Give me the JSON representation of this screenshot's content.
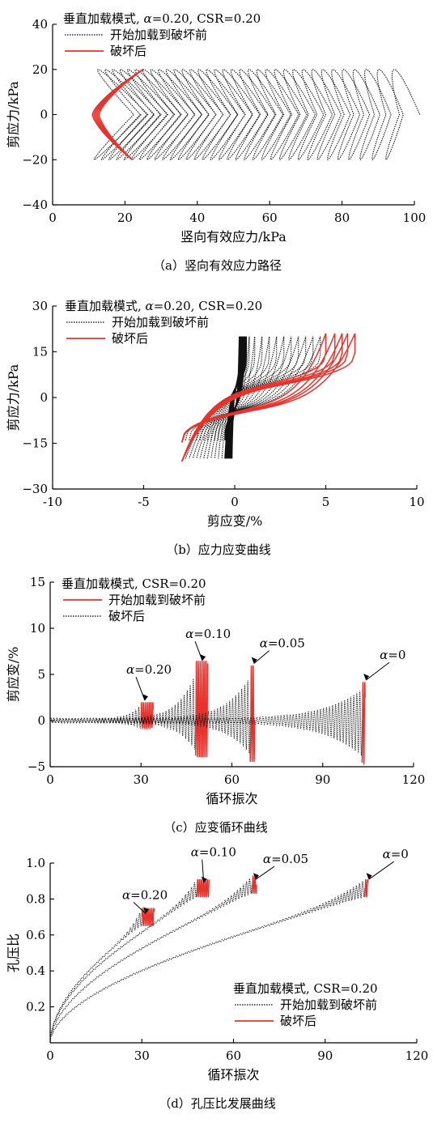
{
  "colors": {
    "before_failure_line": "#111111",
    "after_failure_line": "#e8322c",
    "axis": "#000000",
    "background": "#ffffff"
  },
  "chart_data": [
    {
      "id": "a",
      "type": "line",
      "caption": "（a）竖向有效应力路径",
      "xlabel": "竖向有效应力/kPa",
      "ylabel": "剪应力/kPa",
      "xlim": [
        0,
        100
      ],
      "ylim": [
        -40,
        40
      ],
      "xticks": [
        0,
        20,
        40,
        60,
        80,
        100
      ],
      "yticks": [
        -40,
        -20,
        0,
        20,
        40
      ],
      "grid": false,
      "legend": {
        "placement": "top-left",
        "title": "垂直加载模式, α=0.20, CSR=0.20",
        "entries": [
          {
            "label": "开始加载到破坏前",
            "style": "dotted",
            "color": "#111111"
          },
          {
            "label": "破坏后",
            "style": "solid",
            "color": "#e8322c"
          }
        ]
      },
      "series": [
        {
          "name": "开始加载到破坏前",
          "style": "dotted",
          "color": "#111111",
          "envelope": {
            "sigma_start": 100,
            "sigma_end": 23,
            "cycles": 34,
            "amplitude": 20
          }
        },
        {
          "name": "破坏后",
          "style": "solid",
          "color": "#e8322c",
          "butterfly": {
            "sigma_min": 11,
            "sigma_max_pos": 25,
            "sigma_max_neg": 22,
            "amplitude": 20,
            "cycles": 5
          }
        }
      ]
    },
    {
      "id": "b",
      "type": "line",
      "caption": "（b）应力应变曲线",
      "xlabel": "剪应变/%",
      "ylabel": "剪应力/kPa",
      "xlim": [
        -10,
        10
      ],
      "ylim": [
        -30,
        30
      ],
      "xticks": [
        -10,
        -5,
        0,
        5,
        10
      ],
      "yticks": [
        -30,
        -15,
        0,
        15,
        30
      ],
      "grid": false,
      "legend": {
        "placement": "top-left",
        "title": "垂直加载模式, α=0.20, CSR=0.20",
        "entries": [
          {
            "label": "开始加载到破坏前",
            "style": "dotted",
            "color": "#111111"
          },
          {
            "label": "破坏后",
            "style": "solid",
            "color": "#e8322c"
          }
        ]
      },
      "series": [
        {
          "name": "开始加载到破坏前",
          "style": "dotted",
          "color": "#111111",
          "loops": [
            [
              -0.5,
              0.5
            ],
            [
              -0.7,
              0.8
            ],
            [
              -0.9,
              1.1
            ],
            [
              -1.1,
              1.5
            ],
            [
              -1.3,
              1.9
            ],
            [
              -1.5,
              2.3
            ],
            [
              -1.7,
              2.7
            ],
            [
              -1.9,
              3.1
            ],
            [
              -2.1,
              3.5
            ],
            [
              -2.3,
              3.9
            ],
            [
              -2.5,
              4.3
            ],
            [
              -2.7,
              4.7
            ]
          ],
          "amplitude": 20
        },
        {
          "name": "破坏后",
          "style": "solid",
          "color": "#e8322c",
          "loops": [
            [
              -2.9,
              5.0
            ],
            [
              -2.9,
              5.5
            ],
            [
              -2.9,
              5.9
            ],
            [
              -2.9,
              6.2
            ],
            [
              -2.9,
              6.6
            ]
          ],
          "amplitude": 21
        }
      ]
    },
    {
      "id": "c",
      "type": "line",
      "caption": "（c）应变循环曲线",
      "xlabel": "循环振次",
      "ylabel": "剪应变/%",
      "xlim": [
        0,
        120
      ],
      "ylim": [
        -5,
        15
      ],
      "xticks": [
        0,
        30,
        60,
        90,
        120
      ],
      "yticks": [
        -5,
        0,
        5,
        10,
        15
      ],
      "grid": false,
      "legend": {
        "placement": "top-left",
        "title": "垂直加载模式, CSR=0.20",
        "entries": [
          {
            "label": "开始加载到破坏前",
            "style": "solid",
            "color": "#e8322c"
          },
          {
            "label": "破坏后",
            "style": "dotted",
            "color": "#111111"
          }
        ]
      },
      "series": [
        {
          "name": "α=0.20",
          "n_fail": 30,
          "n_end": 34,
          "peak_max": 2.0,
          "peak_min": -0.8
        },
        {
          "name": "α=0.10",
          "n_fail": 48,
          "n_end": 52,
          "peak_max": 6.5,
          "peak_min": -4.0
        },
        {
          "name": "α=0.05",
          "n_fail": 66,
          "n_end": 67.5,
          "peak_max": 6.0,
          "peak_min": -4.5
        },
        {
          "name": "α=0",
          "n_fail": 103,
          "n_end": 104,
          "peak_max": 4.2,
          "peak_min": -4.8
        }
      ],
      "annotations": [
        {
          "text": "α=0.20",
          "x": 31,
          "y": 2.0
        },
        {
          "text": "α=0.10",
          "x": 50,
          "y": 6.3
        },
        {
          "text": "α=0.05",
          "x": 67,
          "y": 6.0
        },
        {
          "text": "α=0",
          "x": 104,
          "y": 4.2
        }
      ]
    },
    {
      "id": "d",
      "type": "line",
      "caption": "（d）孔压比发展曲线",
      "xlabel": "循环振次",
      "ylabel": "孔压比",
      "xlim": [
        0,
        120
      ],
      "ylim": [
        0,
        1.0
      ],
      "xticks": [
        0,
        30,
        60,
        90,
        120
      ],
      "yticks": [
        0.2,
        0.4,
        0.6,
        0.8,
        1.0
      ],
      "grid": false,
      "legend": {
        "placement": "bottom-right",
        "title": "垂直加载模式, CSR=0.20",
        "entries": [
          {
            "label": "开始加载到破坏前",
            "style": "dotted",
            "color": "#111111"
          },
          {
            "label": "破坏后",
            "style": "solid",
            "color": "#e8322c"
          }
        ]
      },
      "series": [
        {
          "name": "α=0.20",
          "n_fail": 30,
          "n_end": 34,
          "ru_fail": 0.7,
          "k": 0.12
        },
        {
          "name": "α=0.10",
          "n_fail": 48,
          "n_end": 52,
          "ru_fail": 0.86,
          "k": 0.12
        },
        {
          "name": "α=0.05",
          "n_fail": 66,
          "n_end": 67.5,
          "ru_fail": 0.88,
          "k": 0.12
        },
        {
          "name": "α=0",
          "n_fail": 103,
          "n_end": 104,
          "ru_fail": 0.86,
          "k": 0.1
        }
      ],
      "annotations": [
        {
          "text": "α=0.20",
          "x": 31,
          "y": 0.71
        },
        {
          "text": "α=0.10",
          "x": 50,
          "y": 0.88
        },
        {
          "text": "α=0.05",
          "x": 67,
          "y": 0.9
        },
        {
          "text": "α=0",
          "x": 104,
          "y": 0.9
        }
      ]
    }
  ]
}
